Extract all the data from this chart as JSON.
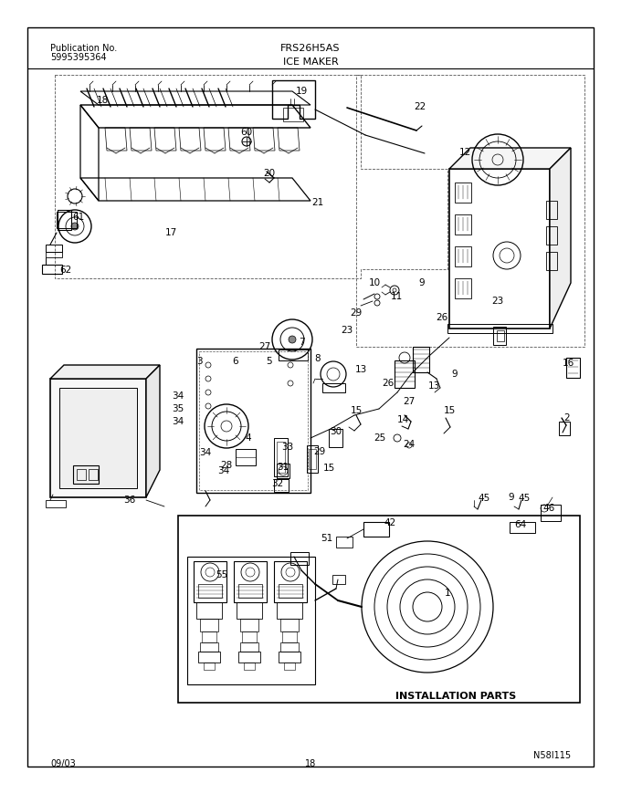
{
  "title_left_line1": "Publication No.",
  "title_left_line2": "5995395364",
  "title_center": "FRS26H5AS",
  "subtitle": "ICE MAKER",
  "footer_left": "09/03",
  "footer_center": "18",
  "footer_right": "N58I115",
  "bg_color": "#ffffff",
  "line_color": "#000000",
  "install_box_label": "INSTALLATION PARTS",
  "fig_width": 6.8,
  "fig_height": 8.69,
  "dpi": 100,
  "part_labels": [
    [
      112,
      110,
      "18"
    ],
    [
      330,
      100,
      "19"
    ],
    [
      460,
      117,
      "22"
    ],
    [
      295,
      190,
      "20"
    ],
    [
      348,
      222,
      "21"
    ],
    [
      86,
      238,
      "61"
    ],
    [
      72,
      296,
      "62"
    ],
    [
      187,
      255,
      "17"
    ],
    [
      270,
      145,
      "60"
    ],
    [
      509,
      167,
      "12"
    ],
    [
      622,
      398,
      "16"
    ],
    [
      621,
      458,
      "2"
    ],
    [
      545,
      330,
      "23"
    ],
    [
      484,
      348,
      "26"
    ],
    [
      462,
      310,
      "9"
    ],
    [
      410,
      310,
      "10"
    ],
    [
      434,
      325,
      "11"
    ],
    [
      390,
      343,
      "29"
    ],
    [
      380,
      362,
      "23"
    ],
    [
      330,
      375,
      "7"
    ],
    [
      290,
      380,
      "27"
    ],
    [
      348,
      393,
      "8"
    ],
    [
      395,
      405,
      "13"
    ],
    [
      425,
      420,
      "26"
    ],
    [
      498,
      410,
      "9"
    ],
    [
      475,
      423,
      "13"
    ],
    [
      448,
      440,
      "27"
    ],
    [
      390,
      450,
      "15"
    ],
    [
      441,
      460,
      "14"
    ],
    [
      492,
      450,
      "15"
    ],
    [
      416,
      480,
      "25"
    ],
    [
      448,
      487,
      "24"
    ],
    [
      368,
      473,
      "30"
    ],
    [
      350,
      495,
      "29"
    ],
    [
      315,
      490,
      "33"
    ],
    [
      310,
      512,
      "31"
    ],
    [
      304,
      530,
      "32"
    ],
    [
      360,
      513,
      "15"
    ],
    [
      218,
      396,
      "3"
    ],
    [
      295,
      396,
      "5"
    ],
    [
      258,
      396,
      "6"
    ],
    [
      272,
      480,
      "4"
    ],
    [
      195,
      448,
      "35"
    ],
    [
      195,
      462,
      "34"
    ],
    [
      225,
      496,
      "34"
    ],
    [
      248,
      510,
      "28"
    ],
    [
      142,
      548,
      "36"
    ],
    [
      245,
      516,
      "34"
    ],
    [
      195,
      434,
      "34"
    ],
    [
      358,
      590,
      "51"
    ],
    [
      427,
      573,
      "42"
    ],
    [
      530,
      546,
      "45"
    ],
    [
      574,
      546,
      "45"
    ],
    [
      601,
      557,
      "46"
    ],
    [
      570,
      575,
      "64"
    ],
    [
      560,
      545,
      "9"
    ],
    [
      243,
      630,
      "55"
    ],
    [
      490,
      650,
      "1"
    ]
  ]
}
